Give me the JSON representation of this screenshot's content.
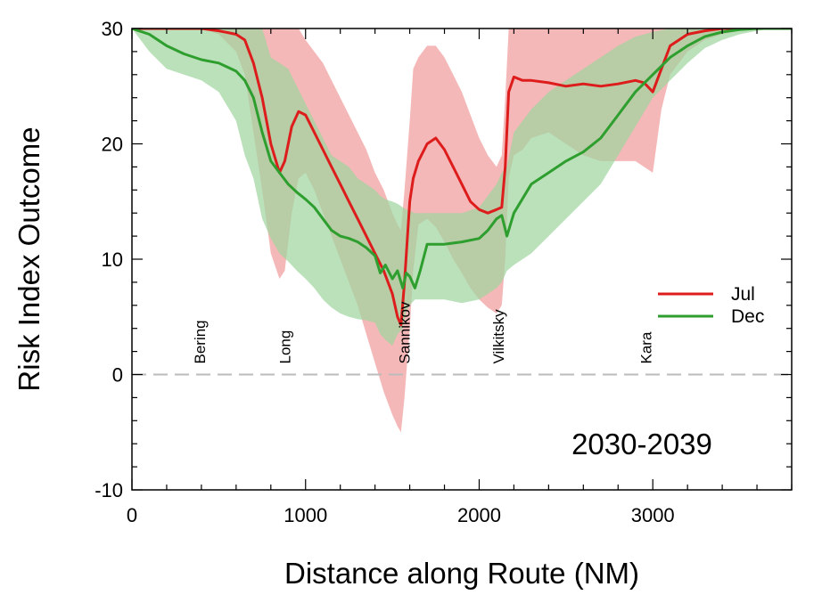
{
  "chart_data": {
    "type": "line",
    "xlabel": "Distance along Route (NM)",
    "ylabel": "Risk Index Outcome",
    "xlim": [
      0,
      3800
    ],
    "ylim": [
      -10,
      30
    ],
    "xticks": [
      0,
      1000,
      2000,
      3000
    ],
    "yticks": [
      -10,
      0,
      10,
      20,
      30
    ],
    "reference_line": {
      "y": 0,
      "style": "dashed",
      "color": "#bbbbbb"
    },
    "annotation": "2030-2039",
    "legend": {
      "position": "right",
      "entries": [
        "Jul",
        "Dec"
      ]
    },
    "straits": [
      {
        "label": "Bering",
        "x": 390
      },
      {
        "label": "Long",
        "x": 880
      },
      {
        "label": "Sannikov",
        "x": 1570
      },
      {
        "label": "Vilkitsky",
        "x": 2110
      },
      {
        "label": "Kara",
        "x": 2960
      }
    ],
    "series": [
      {
        "name": "Jul",
        "color": "#dd1c1c",
        "band_color": "#f19a9a",
        "x": [
          0,
          200,
          400,
          500,
          600,
          650,
          700,
          750,
          800,
          850,
          880,
          920,
          960,
          1000,
          1050,
          1100,
          1150,
          1200,
          1250,
          1300,
          1350,
          1400,
          1450,
          1500,
          1530,
          1550,
          1570,
          1600,
          1620,
          1650,
          1700,
          1750,
          1800,
          1850,
          1900,
          1950,
          2000,
          2050,
          2100,
          2130,
          2150,
          2170,
          2200,
          2250,
          2300,
          2400,
          2500,
          2600,
          2700,
          2800,
          2900,
          2950,
          3000,
          3050,
          3100,
          3200,
          3300,
          3400,
          3500,
          3600,
          3700,
          3800
        ],
        "values": [
          30,
          30,
          30,
          29.8,
          29.5,
          29,
          27,
          24,
          20,
          17.5,
          18.5,
          21.5,
          22.8,
          22.5,
          21,
          19.5,
          18,
          16.5,
          15,
          13.5,
          12,
          10.5,
          9,
          7,
          5,
          4.3,
          8,
          15,
          17,
          18.5,
          20,
          20.5,
          19.5,
          18,
          16.5,
          15,
          14.3,
          14,
          14.3,
          14.5,
          18,
          24.5,
          25.8,
          25.5,
          25.5,
          25.3,
          25,
          25.2,
          25,
          25.2,
          25.5,
          25.3,
          24.5,
          26.5,
          28.5,
          29.5,
          29.8,
          30,
          30,
          30,
          30,
          30
        ],
        "lower": [
          30,
          30,
          30,
          29.5,
          28,
          26,
          21,
          16,
          10.5,
          8.3,
          9,
          14,
          17,
          17.5,
          16,
          14,
          12,
          10,
          8,
          6,
          3.5,
          1,
          -1.5,
          -3.5,
          -4.5,
          -5,
          -2,
          4,
          9,
          13,
          13.5,
          12.8,
          11.5,
          10,
          8.8,
          7.5,
          6.5,
          5.8,
          5.3,
          6,
          10,
          17,
          19,
          19.5,
          20.5,
          21,
          20,
          19,
          18.5,
          18.5,
          18.5,
          18,
          17.5,
          23,
          26,
          28,
          29,
          29.5,
          29.8,
          30,
          30,
          30
        ],
        "upper": [
          30,
          30,
          30,
          30,
          30,
          30,
          30,
          30,
          30,
          30,
          30,
          30,
          30,
          29,
          28,
          27,
          25.5,
          24,
          22.5,
          21,
          19.5,
          17.5,
          16,
          14,
          13,
          12.5,
          16,
          22,
          26.5,
          27.5,
          28.5,
          28.5,
          27.5,
          26,
          24.5,
          22.5,
          20.5,
          19,
          18,
          19,
          24,
          30,
          30,
          30,
          30,
          30,
          30,
          30,
          30,
          30,
          30,
          30,
          30,
          30,
          30,
          30,
          30,
          30,
          30,
          30,
          30,
          30
        ]
      },
      {
        "name": "Dec",
        "color": "#2e9e2e",
        "band_color": "#9ed49e",
        "x": [
          0,
          100,
          200,
          300,
          400,
          500,
          600,
          650,
          700,
          750,
          800,
          850,
          900,
          950,
          1000,
          1050,
          1100,
          1150,
          1200,
          1250,
          1300,
          1350,
          1400,
          1430,
          1460,
          1500,
          1530,
          1560,
          1580,
          1600,
          1630,
          1660,
          1700,
          1800,
          1900,
          2000,
          2050,
          2100,
          2130,
          2160,
          2200,
          2300,
          2400,
          2500,
          2600,
          2700,
          2800,
          2900,
          3000,
          3100,
          3200,
          3300,
          3400,
          3500,
          3600,
          3700,
          3800
        ],
        "values": [
          30,
          29.5,
          28.5,
          27.8,
          27.3,
          27,
          26.3,
          25.5,
          24,
          21,
          18.5,
          17.5,
          16.5,
          15.8,
          15.2,
          14.5,
          13.5,
          12.5,
          12,
          11.8,
          11.5,
          11,
          10.3,
          8.8,
          9.5,
          8.3,
          9,
          7.5,
          8.8,
          8.5,
          7.5,
          9,
          11.3,
          11.3,
          11.5,
          11.8,
          12.5,
          13.5,
          13.8,
          12,
          14,
          16.5,
          17.5,
          18.5,
          19.3,
          20.5,
          22.5,
          24.5,
          26,
          27.5,
          28.5,
          29.3,
          29.7,
          29.9,
          30,
          30,
          30
        ],
        "lower": [
          30,
          28,
          26.5,
          26,
          25.5,
          24.5,
          22,
          19,
          17,
          13.5,
          11.8,
          10.5,
          9.8,
          9,
          8.3,
          7.5,
          6.5,
          5.8,
          5.3,
          5,
          4.8,
          4.7,
          4.5,
          3.5,
          3,
          2.5,
          3.5,
          4,
          5.5,
          6,
          6.5,
          6.5,
          6.5,
          6.5,
          6.2,
          6.5,
          7,
          7.5,
          8,
          9,
          9.5,
          10.5,
          12,
          13.5,
          15,
          16.5,
          19,
          21.5,
          24,
          25.5,
          27,
          28.3,
          29,
          29.5,
          29.8,
          30,
          30
        ],
        "upper": [
          30,
          30,
          30,
          30,
          30,
          30,
          30,
          30,
          30,
          30,
          27.5,
          27,
          26.5,
          25,
          23.5,
          22,
          20.5,
          19,
          18.5,
          18,
          17,
          16.5,
          16,
          15.5,
          15.2,
          15,
          14.8,
          14.5,
          14.3,
          14.2,
          14,
          14,
          14,
          14,
          14,
          14.5,
          15.5,
          16.5,
          17.5,
          18,
          21,
          23,
          24.5,
          25.5,
          26.5,
          27.5,
          28.5,
          29.3,
          29.7,
          30,
          30,
          30,
          30,
          30,
          30,
          30,
          30
        ]
      }
    ]
  }
}
